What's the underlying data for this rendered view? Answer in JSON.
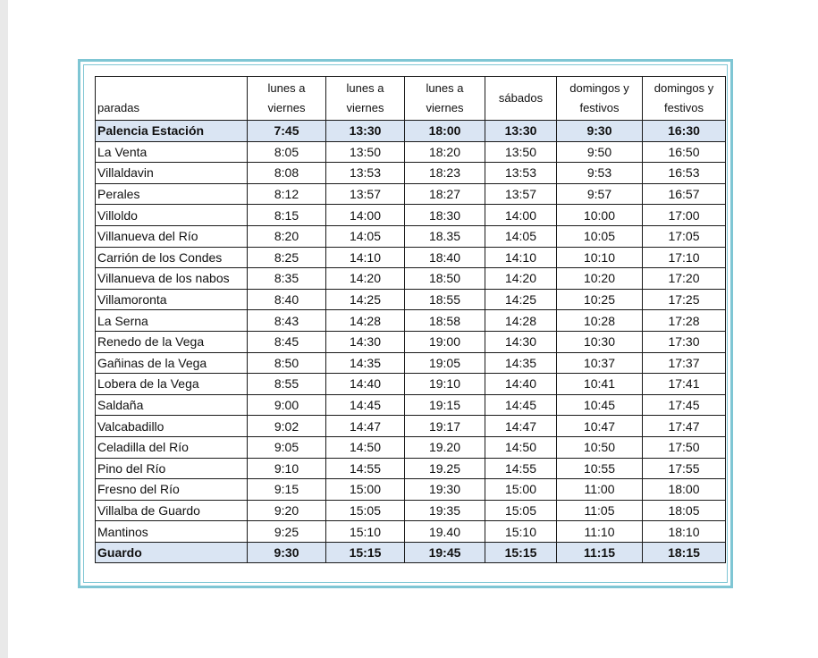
{
  "header": {
    "stop_label": "paradas",
    "columns": [
      [
        "lunes a",
        "viernes"
      ],
      [
        "lunes a",
        "viernes"
      ],
      [
        "lunes a",
        "viernes"
      ],
      [
        "sábados"
      ],
      [
        "domingos y",
        "festivos"
      ],
      [
        "domingos y",
        "festivos"
      ]
    ]
  },
  "rows": [
    {
      "stop": "Palencia Estación",
      "times": [
        "7:45",
        "13:30",
        "18:00",
        "13:30",
        "9:30",
        "16:30"
      ],
      "highlight": true
    },
    {
      "stop": "La Venta",
      "times": [
        "8:05",
        "13:50",
        "18:20",
        "13:50",
        "9:50",
        "16:50"
      ]
    },
    {
      "stop": "Villaldavin",
      "times": [
        "8:08",
        "13:53",
        "18:23",
        "13:53",
        "9:53",
        "16:53"
      ]
    },
    {
      "stop": "Perales",
      "times": [
        "8:12",
        "13:57",
        "18:27",
        "13:57",
        "9:57",
        "16:57"
      ]
    },
    {
      "stop": "Villoldo",
      "times": [
        "8:15",
        "14:00",
        "18:30",
        "14:00",
        "10:00",
        "17:00"
      ]
    },
    {
      "stop": "Villanueva del Río",
      "times": [
        "8:20",
        "14:05",
        "18.35",
        "14:05",
        "10:05",
        "17:05"
      ]
    },
    {
      "stop": "Carrión de los Condes",
      "times": [
        "8:25",
        "14:10",
        "18:40",
        "14:10",
        "10:10",
        "17:10"
      ]
    },
    {
      "stop": "Villanueva de los nabos",
      "times": [
        "8:35",
        "14:20",
        "18:50",
        "14:20",
        "10:20",
        "17:20"
      ]
    },
    {
      "stop": "Villamoronta",
      "times": [
        "8:40",
        "14:25",
        "18:55",
        "14:25",
        "10:25",
        "17:25"
      ]
    },
    {
      "stop": "La Serna",
      "times": [
        "8:43",
        "14:28",
        "18:58",
        "14:28",
        "10:28",
        "17:28"
      ]
    },
    {
      "stop": "Renedo de la Vega",
      "times": [
        "8:45",
        "14:30",
        "19:00",
        "14:30",
        "10:30",
        "17:30"
      ]
    },
    {
      "stop": "Gañinas de la Vega",
      "times": [
        "8:50",
        "14:35",
        "19:05",
        "14:35",
        "10:37",
        "17:37"
      ]
    },
    {
      "stop": "Lobera de la Vega",
      "times": [
        "8:55",
        "14:40",
        "19:10",
        "14:40",
        "10:41",
        "17:41"
      ]
    },
    {
      "stop": "Saldaña",
      "times": [
        "9:00",
        "14:45",
        "19:15",
        "14:45",
        "10:45",
        "17:45"
      ]
    },
    {
      "stop": "Valcabadillo",
      "times": [
        "9:02",
        "14:47",
        "19:17",
        "14:47",
        "10:47",
        "17:47"
      ]
    },
    {
      "stop": "Celadilla del Río",
      "times": [
        "9:05",
        "14:50",
        "19.20",
        "14:50",
        "10:50",
        "17:50"
      ]
    },
    {
      "stop": "Pino del Río",
      "times": [
        "9:10",
        "14:55",
        "19.25",
        "14:55",
        "10:55",
        "17:55"
      ]
    },
    {
      "stop": "Fresno del Río",
      "times": [
        "9:15",
        "15:00",
        "19:30",
        "15:00",
        "11:00",
        "18:00"
      ]
    },
    {
      "stop": "Villalba de Guardo",
      "times": [
        "9:20",
        "15:05",
        "19:35",
        "15:05",
        "11:05",
        "18:05"
      ]
    },
    {
      "stop": "Mantinos",
      "times": [
        "9:25",
        "15:10",
        "19.40",
        "15:10",
        "11:10",
        "18:10"
      ]
    },
    {
      "stop": "Guardo",
      "times": [
        "9:30",
        "15:15",
        "19:45",
        "15:15",
        "11:15",
        "18:15"
      ],
      "highlight": true
    }
  ]
}
